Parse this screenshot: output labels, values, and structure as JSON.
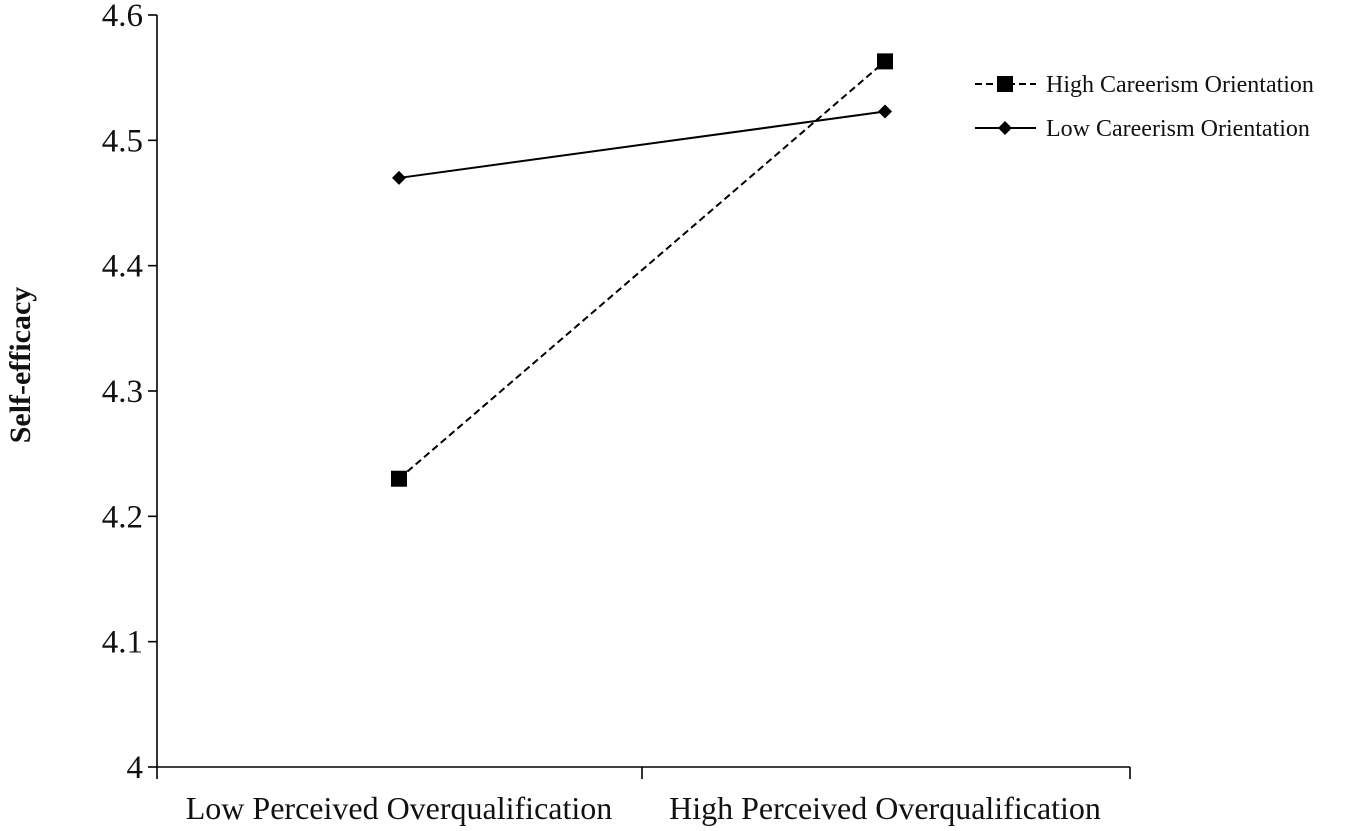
{
  "chart_data": {
    "type": "line",
    "title": "",
    "xlabel": "",
    "ylabel": "Self-efficacy",
    "categories": [
      "Low Perceived Overqualification",
      "High Perceived Overqualification"
    ],
    "ylim": [
      4,
      4.6
    ],
    "yticks": [
      4,
      4.1,
      4.2,
      4.3,
      4.4,
      4.5,
      4.6
    ],
    "ytick_labels": [
      "4",
      "4.1",
      "4.2",
      "4.3",
      "4.4",
      "4.5",
      "4.6"
    ],
    "grid": false,
    "legend": "top-right",
    "series": [
      {
        "name": "High Careerism Orientation",
        "values": [
          4.23,
          4.563
        ],
        "line_style": "dashed",
        "marker": "square",
        "color": "#000000"
      },
      {
        "name": "Low Careerism Orientation",
        "values": [
          4.47,
          4.523
        ],
        "line_style": "solid",
        "marker": "diamond",
        "color": "#000000"
      }
    ]
  }
}
